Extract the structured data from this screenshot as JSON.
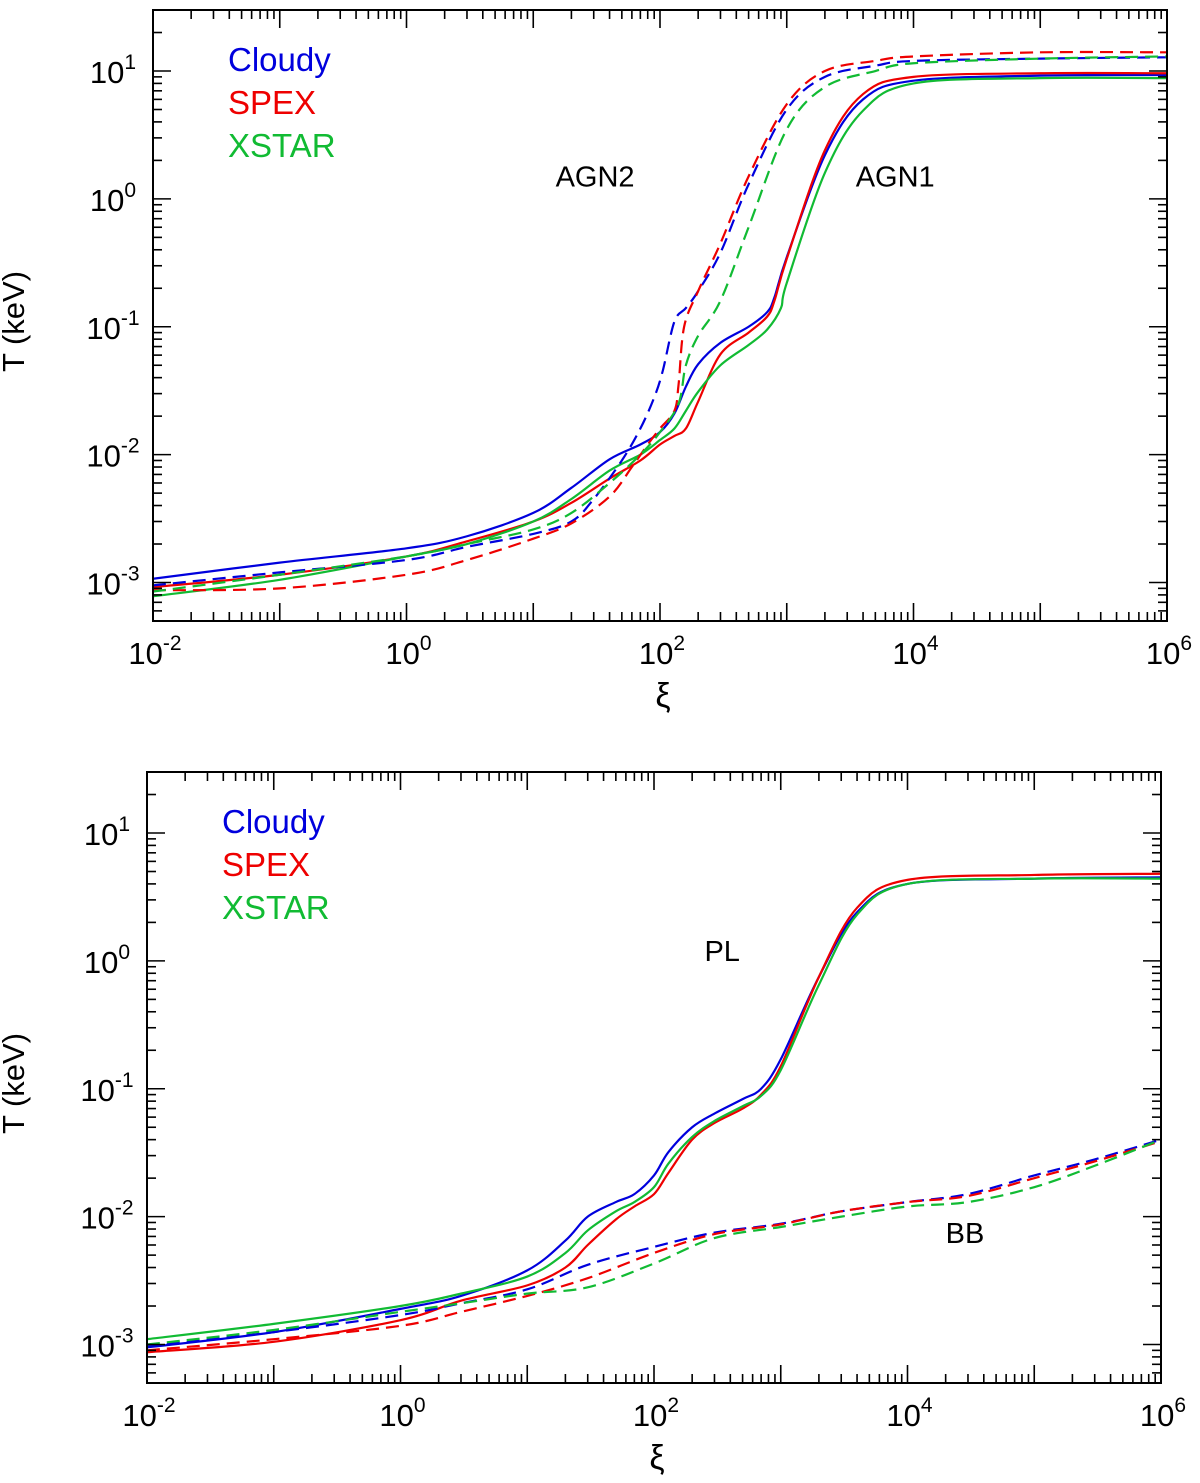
{
  "chart_data": [
    {
      "type": "line",
      "xscale": "log",
      "yscale": "log",
      "xlim": [
        0.01,
        1000000
      ],
      "ylim": [
        0.0005,
        30
      ],
      "xlabel": "ξ",
      "ylabel": "T (keV)",
      "xticks": [
        {
          "pre": "10",
          "exp": "-2"
        },
        {
          "pre": "10",
          "exp": "0"
        },
        {
          "pre": "10",
          "exp": "2"
        },
        {
          "pre": "10",
          "exp": "4"
        },
        {
          "pre": "10",
          "exp": "6"
        }
      ],
      "yticks": [
        {
          "pre": "10",
          "exp": "-3"
        },
        {
          "pre": "10",
          "exp": "-2"
        },
        {
          "pre": "10",
          "exp": "-1"
        },
        {
          "pre": "10",
          "exp": "0"
        },
        {
          "pre": "10",
          "exp": "1"
        }
      ],
      "legend": [
        {
          "label": "Cloudy",
          "color": "#0000dd"
        },
        {
          "label": "SPEX",
          "color": "#ee0000"
        },
        {
          "label": "XSTAR",
          "color": "#11bb33"
        }
      ],
      "legend_position": "top-left",
      "annotations": [
        {
          "text": "AGN2",
          "x": 15,
          "y": 1.25
        },
        {
          "text": "AGN1",
          "x": 3500,
          "y": 1.25
        }
      ],
      "series": [
        {
          "name": "Cloudy AGN1",
          "code": "Cloudy",
          "color": "#0000dd",
          "style": "solid",
          "x": [
            0.01,
            0.1,
            1,
            3,
            10,
            20,
            40,
            70,
            100,
            130,
            160,
            200,
            300,
            500,
            700,
            800,
            1000,
            2000,
            4000,
            10000,
            100000,
            1000000
          ],
          "y": [
            0.00107,
            0.00143,
            0.00185,
            0.0023,
            0.0035,
            0.0055,
            0.0092,
            0.012,
            0.015,
            0.021,
            0.034,
            0.051,
            0.075,
            0.1,
            0.13,
            0.17,
            0.35,
            2.2,
            6.0,
            8.4,
            9.2,
            9.3
          ]
        },
        {
          "name": "SPEX AGN1",
          "code": "SPEX",
          "color": "#ee0000",
          "style": "solid",
          "x": [
            0.01,
            0.1,
            1,
            3,
            10,
            20,
            40,
            70,
            100,
            130,
            160,
            200,
            300,
            500,
            700,
            800,
            1000,
            2000,
            4000,
            10000,
            100000,
            1000000
          ],
          "y": [
            0.00092,
            0.00115,
            0.0016,
            0.0021,
            0.003,
            0.0042,
            0.0065,
            0.009,
            0.012,
            0.014,
            0.016,
            0.026,
            0.061,
            0.09,
            0.12,
            0.16,
            0.34,
            2.4,
            6.6,
            9.0,
            9.6,
            9.6
          ]
        },
        {
          "name": "XSTAR AGN1",
          "code": "XSTAR",
          "color": "#11bb33",
          "style": "solid",
          "x": [
            0.01,
            0.1,
            1,
            3,
            10,
            20,
            40,
            70,
            100,
            130,
            160,
            200,
            300,
            500,
            700,
            900,
            1000,
            2000,
            4000,
            10000,
            100000,
            1000000
          ],
          "y": [
            0.00078,
            0.00105,
            0.0016,
            0.002,
            0.003,
            0.0045,
            0.0075,
            0.01,
            0.013,
            0.016,
            0.022,
            0.031,
            0.05,
            0.072,
            0.095,
            0.14,
            0.22,
            1.6,
            4.9,
            8.0,
            8.8,
            8.8
          ]
        },
        {
          "name": "Cloudy AGN2",
          "code": "Cloudy",
          "color": "#0000dd",
          "style": "dashed",
          "x": [
            0.01,
            0.1,
            1,
            3,
            10,
            20,
            30,
            50,
            70,
            90,
            105,
            130,
            160,
            200,
            300,
            500,
            1000,
            2000,
            5000,
            10000,
            100000,
            1000000
          ],
          "y": [
            0.00095,
            0.0012,
            0.0015,
            0.0019,
            0.0024,
            0.003,
            0.0045,
            0.009,
            0.016,
            0.028,
            0.045,
            0.11,
            0.14,
            0.19,
            0.38,
            1.3,
            5.0,
            9.0,
            11.0,
            12.0,
            12.5,
            12.8
          ]
        },
        {
          "name": "SPEX AGN2",
          "code": "SPEX",
          "color": "#ee0000",
          "style": "dashed",
          "x": [
            0.01,
            0.1,
            1,
            3,
            10,
            20,
            40,
            60,
            80,
            100,
            130,
            140,
            155,
            200,
            300,
            500,
            1000,
            2000,
            5000,
            10000,
            100000,
            1000000
          ],
          "y": [
            0.00087,
            0.0009,
            0.00115,
            0.0015,
            0.0022,
            0.0029,
            0.0047,
            0.008,
            0.012,
            0.016,
            0.022,
            0.035,
            0.1,
            0.19,
            0.45,
            1.5,
            5.5,
            10.0,
            12.0,
            13.0,
            14.0,
            14.0
          ]
        },
        {
          "name": "XSTAR AGN2",
          "code": "XSTAR",
          "color": "#11bb33",
          "style": "dashed",
          "x": [
            0.01,
            0.1,
            1,
            3,
            10,
            20,
            40,
            70,
            100,
            140,
            160,
            200,
            300,
            500,
            1000,
            2000,
            5000,
            10000,
            100000,
            1000000
          ],
          "y": [
            0.00085,
            0.00115,
            0.0016,
            0.002,
            0.0026,
            0.0035,
            0.006,
            0.01,
            0.015,
            0.025,
            0.05,
            0.085,
            0.16,
            0.6,
            3.5,
            7.5,
            10.0,
            11.5,
            12.5,
            13.0
          ]
        }
      ]
    },
    {
      "type": "line",
      "xscale": "log",
      "yscale": "log",
      "xlim": [
        0.01,
        1000000
      ],
      "ylim": [
        0.0005,
        30
      ],
      "xlabel": "ξ",
      "ylabel": "T (keV)",
      "xticks": [
        {
          "pre": "10",
          "exp": "-2"
        },
        {
          "pre": "10",
          "exp": "0"
        },
        {
          "pre": "10",
          "exp": "2"
        },
        {
          "pre": "10",
          "exp": "4"
        },
        {
          "pre": "10",
          "exp": "6"
        }
      ],
      "yticks": [
        {
          "pre": "10",
          "exp": "-3"
        },
        {
          "pre": "10",
          "exp": "-2"
        },
        {
          "pre": "10",
          "exp": "-1"
        },
        {
          "pre": "10",
          "exp": "0"
        },
        {
          "pre": "10",
          "exp": "1"
        }
      ],
      "legend": [
        {
          "label": "Cloudy",
          "color": "#0000dd"
        },
        {
          "label": "SPEX",
          "color": "#ee0000"
        },
        {
          "label": "XSTAR",
          "color": "#11bb33"
        }
      ],
      "legend_position": "top-left",
      "annotations": [
        {
          "text": "PL",
          "x": 250,
          "y": 1.0
        },
        {
          "text": "BB",
          "x": 20000,
          "y": 0.0062
        }
      ],
      "series": [
        {
          "name": "Cloudy PL",
          "code": "Cloudy",
          "color": "#0000dd",
          "style": "solid",
          "x": [
            0.01,
            0.1,
            1,
            3,
            10,
            20,
            30,
            50,
            70,
            100,
            130,
            200,
            300,
            500,
            700,
            1000,
            2000,
            4000,
            10000,
            100000,
            1000000
          ],
          "y": [
            0.00095,
            0.00125,
            0.0019,
            0.0024,
            0.0038,
            0.0065,
            0.01,
            0.013,
            0.015,
            0.021,
            0.032,
            0.05,
            0.064,
            0.083,
            0.1,
            0.17,
            0.75,
            2.4,
            4.0,
            4.4,
            4.5
          ]
        },
        {
          "name": "SPEX PL",
          "code": "SPEX",
          "color": "#ee0000",
          "style": "solid",
          "x": [
            0.01,
            0.1,
            1,
            3,
            10,
            20,
            30,
            50,
            70,
            100,
            130,
            200,
            300,
            500,
            700,
            1000,
            2000,
            4000,
            10000,
            100000,
            1000000
          ],
          "y": [
            0.00087,
            0.00105,
            0.00155,
            0.0022,
            0.0029,
            0.004,
            0.006,
            0.0095,
            0.012,
            0.015,
            0.022,
            0.04,
            0.054,
            0.07,
            0.09,
            0.15,
            0.75,
            2.6,
            4.3,
            4.7,
            4.8
          ]
        },
        {
          "name": "XSTAR PL",
          "code": "XSTAR",
          "color": "#11bb33",
          "style": "solid",
          "x": [
            0.01,
            0.1,
            1,
            3,
            10,
            20,
            30,
            50,
            70,
            100,
            130,
            200,
            300,
            500,
            700,
            1000,
            2000,
            4000,
            10000,
            100000,
            1000000
          ],
          "y": [
            0.0011,
            0.00145,
            0.002,
            0.0025,
            0.0034,
            0.0052,
            0.0078,
            0.011,
            0.013,
            0.017,
            0.026,
            0.042,
            0.056,
            0.073,
            0.088,
            0.14,
            0.65,
            2.3,
            4.0,
            4.4,
            4.4
          ]
        },
        {
          "name": "Cloudy BB",
          "code": "Cloudy",
          "color": "#0000dd",
          "style": "dashed",
          "x": [
            0.01,
            0.1,
            1,
            3,
            10,
            30,
            100,
            300,
            1000,
            3000,
            10000,
            30000,
            100000,
            300000,
            1000000
          ],
          "y": [
            0.00097,
            0.00125,
            0.0017,
            0.0021,
            0.0027,
            0.0042,
            0.0058,
            0.0075,
            0.0088,
            0.011,
            0.013,
            0.015,
            0.021,
            0.028,
            0.04
          ]
        },
        {
          "name": "SPEX BB",
          "code": "SPEX",
          "color": "#ee0000",
          "style": "dashed",
          "x": [
            0.01,
            0.1,
            1,
            3,
            10,
            30,
            100,
            300,
            1000,
            3000,
            10000,
            30000,
            100000,
            300000,
            1000000
          ],
          "y": [
            0.0009,
            0.0011,
            0.0014,
            0.0018,
            0.0024,
            0.0033,
            0.0052,
            0.0073,
            0.0087,
            0.011,
            0.013,
            0.0145,
            0.02,
            0.027,
            0.039
          ]
        },
        {
          "name": "XSTAR BB",
          "code": "XSTAR",
          "color": "#11bb33",
          "style": "dashed",
          "x": [
            0.01,
            0.1,
            1,
            3,
            10,
            30,
            100,
            300,
            1000,
            3000,
            10000,
            30000,
            100000,
            300000,
            1000000
          ],
          "y": [
            0.001,
            0.0013,
            0.0018,
            0.0021,
            0.0025,
            0.0028,
            0.0043,
            0.0068,
            0.0083,
            0.01,
            0.012,
            0.013,
            0.017,
            0.025,
            0.04
          ]
        }
      ]
    }
  ]
}
